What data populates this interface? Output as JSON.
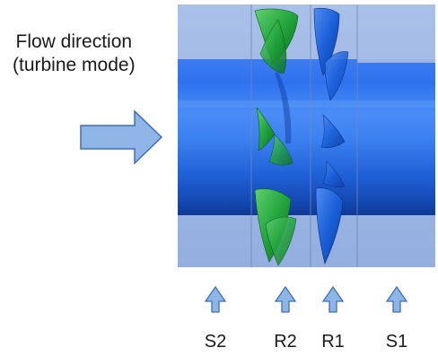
{
  "flow_label": {
    "line1": "Flow direction",
    "line2": "(turbine mode)"
  },
  "stages": [
    {
      "id": "S2",
      "label": "S2"
    },
    {
      "id": "R2",
      "label": "R2"
    },
    {
      "id": "R1",
      "label": "R1"
    },
    {
      "id": "S1",
      "label": "S1"
    }
  ],
  "colors": {
    "casing": "#9db6e3",
    "shaft": "#1a63e0",
    "rotor_r2_blades": "#1f9e3a",
    "rotor_r1_blades": "#1654c9",
    "arrow_fill": "#8fb4e6",
    "arrow_stroke": "#3f6fb8"
  },
  "icons": {
    "flow_arrow": "right-arrow-icon",
    "stage_pointer": "up-arrow-icon"
  }
}
